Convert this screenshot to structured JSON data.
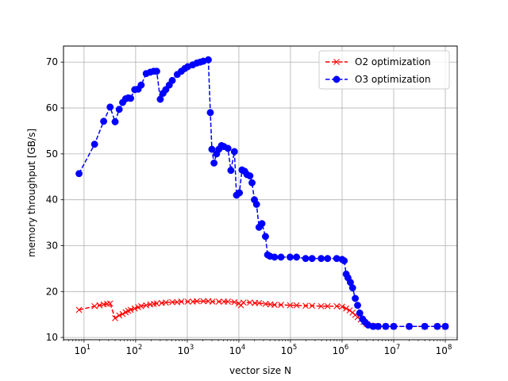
{
  "chart_data": {
    "type": "line",
    "xlabel": "vector size N",
    "ylabel": "memory throughput [GB/s]",
    "x_scale": "log",
    "xlim": [
      4,
      170000000
    ],
    "ylim": [
      9.5,
      73.5
    ],
    "grid": true,
    "legend_position": "top-right",
    "x_ticks": [
      {
        "value": 10,
        "base": "10",
        "exp": "1"
      },
      {
        "value": 100,
        "base": "10",
        "exp": "2"
      },
      {
        "value": 1000,
        "base": "10",
        "exp": "3"
      },
      {
        "value": 10000,
        "base": "10",
        "exp": "4"
      },
      {
        "value": 100000,
        "base": "10",
        "exp": "5"
      },
      {
        "value": 1000000,
        "base": "10",
        "exp": "6"
      },
      {
        "value": 10000000,
        "base": "10",
        "exp": "7"
      },
      {
        "value": 100000000,
        "base": "10",
        "exp": "8"
      }
    ],
    "y_ticks": [
      "10",
      "20",
      "30",
      "40",
      "50",
      "60",
      "70"
    ],
    "series": [
      {
        "name": "O2 optimization",
        "color": "#ff0000",
        "marker": "x",
        "linestyle": "dashed",
        "points": [
          [
            8,
            16.0
          ],
          [
            16,
            16.8
          ],
          [
            20,
            17.0
          ],
          [
            24,
            17.2
          ],
          [
            28,
            17.3
          ],
          [
            32,
            17.4
          ],
          [
            40,
            14.2
          ],
          [
            48,
            14.8
          ],
          [
            56,
            15.1
          ],
          [
            64,
            15.5
          ],
          [
            72,
            15.8
          ],
          [
            80,
            16.0
          ],
          [
            96,
            16.3
          ],
          [
            112,
            16.6
          ],
          [
            128,
            16.8
          ],
          [
            160,
            17.0
          ],
          [
            192,
            17.2
          ],
          [
            224,
            17.3
          ],
          [
            256,
            17.4
          ],
          [
            320,
            17.5
          ],
          [
            384,
            17.6
          ],
          [
            512,
            17.7
          ],
          [
            640,
            17.7
          ],
          [
            768,
            17.8
          ],
          [
            1024,
            17.8
          ],
          [
            1280,
            17.8
          ],
          [
            1536,
            17.9
          ],
          [
            2048,
            17.9
          ],
          [
            2560,
            17.9
          ],
          [
            3072,
            17.8
          ],
          [
            4096,
            17.8
          ],
          [
            5120,
            17.8
          ],
          [
            6144,
            17.8
          ],
          [
            8192,
            17.7
          ],
          [
            10000,
            17.4
          ],
          [
            11000,
            17.0
          ],
          [
            12288,
            17.6
          ],
          [
            16384,
            17.6
          ],
          [
            20480,
            17.5
          ],
          [
            24576,
            17.5
          ],
          [
            32768,
            17.3
          ],
          [
            40960,
            17.2
          ],
          [
            49152,
            17.1
          ],
          [
            65536,
            17.1
          ],
          [
            98304,
            17.0
          ],
          [
            131072,
            17.0
          ],
          [
            196608,
            16.9
          ],
          [
            262144,
            16.9
          ],
          [
            393216,
            16.8
          ],
          [
            524288,
            16.8
          ],
          [
            786432,
            16.8
          ],
          [
            1000000,
            16.7
          ],
          [
            1200000,
            16.3
          ],
          [
            1400000,
            15.9
          ],
          [
            1600000,
            15.4
          ],
          [
            1800000,
            14.9
          ],
          [
            2000000,
            14.4
          ],
          [
            2300000,
            13.9
          ],
          [
            2600000,
            13.4
          ],
          [
            3000000,
            12.9
          ],
          [
            3500000,
            12.6
          ],
          [
            4000000,
            12.5
          ],
          [
            5000000,
            12.4
          ],
          [
            7000000,
            12.4
          ],
          [
            10000000,
            12.4
          ],
          [
            20000000,
            12.4
          ],
          [
            40000000,
            12.4
          ],
          [
            70000000,
            12.4
          ],
          [
            100000000,
            12.4
          ]
        ]
      },
      {
        "name": "O3 optimization",
        "color": "#0000ff",
        "marker": "o",
        "linestyle": "dashed",
        "points": [
          [
            8,
            45.7
          ],
          [
            16,
            52.1
          ],
          [
            24,
            57.1
          ],
          [
            32,
            60.2
          ],
          [
            40,
            57.0
          ],
          [
            48,
            59.7
          ],
          [
            56,
            61.2
          ],
          [
            64,
            62.0
          ],
          [
            72,
            62.2
          ],
          [
            80,
            62.1
          ],
          [
            96,
            64.0
          ],
          [
            112,
            64.1
          ],
          [
            128,
            65.0
          ],
          [
            160,
            67.5
          ],
          [
            192,
            67.8
          ],
          [
            224,
            68.0
          ],
          [
            256,
            68.0
          ],
          [
            300,
            61.9
          ],
          [
            340,
            63.2
          ],
          [
            384,
            64.0
          ],
          [
            448,
            65.0
          ],
          [
            512,
            66.0
          ],
          [
            640,
            67.3
          ],
          [
            768,
            68.0
          ],
          [
            896,
            68.6
          ],
          [
            1024,
            69.0
          ],
          [
            1280,
            69.4
          ],
          [
            1536,
            69.8
          ],
          [
            1792,
            70.0
          ],
          [
            2048,
            70.2
          ],
          [
            2560,
            70.5
          ],
          [
            2800,
            59.0
          ],
          [
            3000,
            51.0
          ],
          [
            3300,
            48.0
          ],
          [
            3700,
            50.0
          ],
          [
            4096,
            51.0
          ],
          [
            4600,
            51.8
          ],
          [
            5120,
            51.6
          ],
          [
            6144,
            51.2
          ],
          [
            7000,
            46.4
          ],
          [
            8192,
            50.5
          ],
          [
            9000,
            41.0
          ],
          [
            10240,
            41.5
          ],
          [
            11500,
            46.5
          ],
          [
            13000,
            46.2
          ],
          [
            14336,
            45.5
          ],
          [
            16384,
            45.2
          ],
          [
            18000,
            43.7
          ],
          [
            20000,
            40.0
          ],
          [
            22000,
            39.0
          ],
          [
            24576,
            34.0
          ],
          [
            28000,
            34.8
          ],
          [
            32768,
            32.0
          ],
          [
            36000,
            28.0
          ],
          [
            40000,
            27.7
          ],
          [
            49152,
            27.5
          ],
          [
            65536,
            27.5
          ],
          [
            98304,
            27.5
          ],
          [
            131072,
            27.5
          ],
          [
            196608,
            27.2
          ],
          [
            262144,
            27.2
          ],
          [
            393216,
            27.2
          ],
          [
            524288,
            27.2
          ],
          [
            786432,
            27.2
          ],
          [
            1000000,
            27.0
          ],
          [
            1100000,
            26.7
          ],
          [
            1200000,
            23.8
          ],
          [
            1300000,
            23.0
          ],
          [
            1450000,
            22.0
          ],
          [
            1600000,
            20.8
          ],
          [
            1800000,
            18.5
          ],
          [
            2000000,
            17.0
          ],
          [
            2200000,
            15.3
          ],
          [
            2500000,
            14.0
          ],
          [
            2800000,
            13.3
          ],
          [
            3200000,
            12.7
          ],
          [
            4000000,
            12.4
          ],
          [
            5000000,
            12.4
          ],
          [
            7000000,
            12.4
          ],
          [
            10000000,
            12.4
          ],
          [
            20000000,
            12.4
          ],
          [
            40000000,
            12.4
          ],
          [
            70000000,
            12.4
          ],
          [
            100000000,
            12.4
          ]
        ]
      }
    ]
  }
}
